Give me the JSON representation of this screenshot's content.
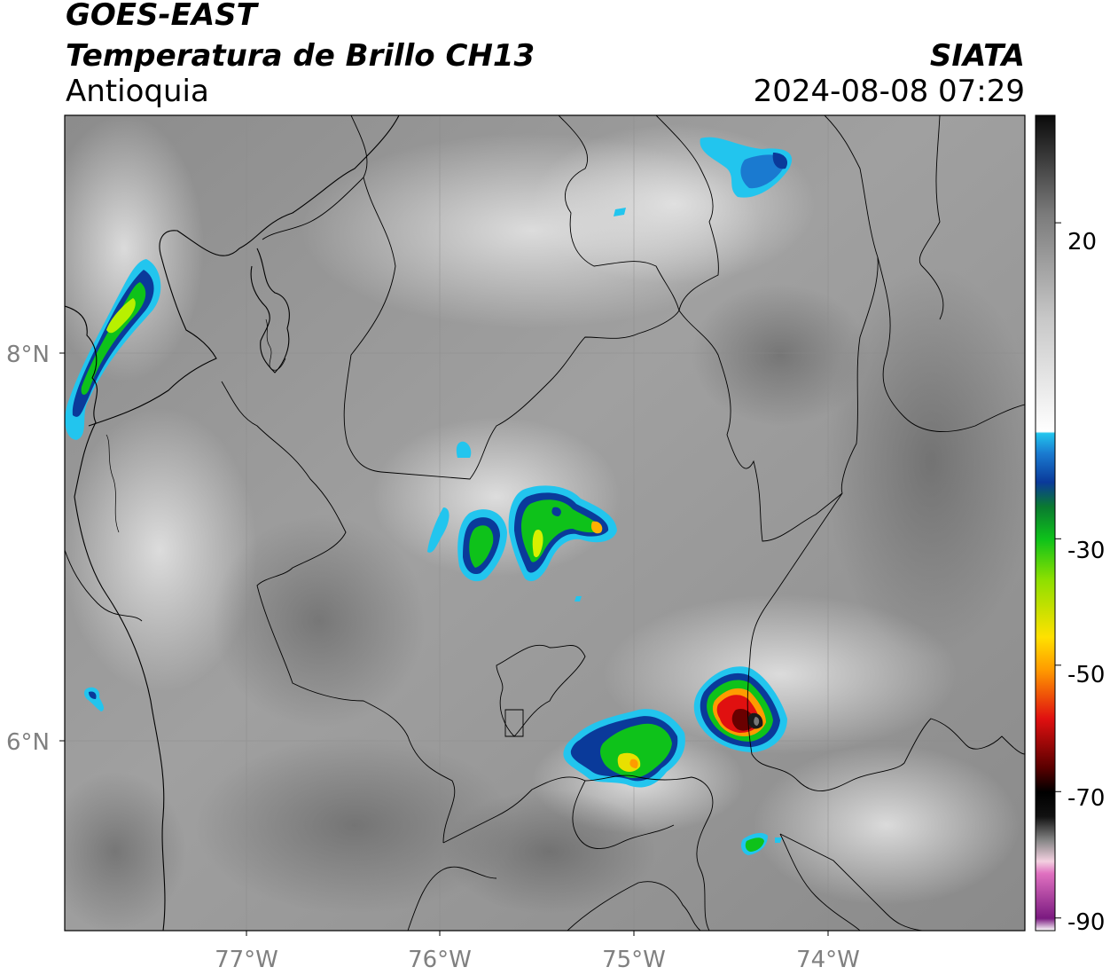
{
  "header": {
    "satellite": "GOES-EAST",
    "product": "Temperatura de Brillo CH13",
    "region": "Antioquia",
    "organization": "SIATA",
    "datetime": "2024-08-08 07:29"
  },
  "axes": {
    "longitude_ticks": [
      "77°W",
      "76°W",
      "75°W",
      "74°W"
    ],
    "latitude_ticks": [
      "8°N",
      "6°N"
    ]
  },
  "colorbar": {
    "tick_labels": [
      "20",
      "-30",
      "-50",
      "-70",
      "-90"
    ],
    "tick_values": [
      20,
      -30,
      -50,
      -70,
      -90
    ],
    "range": [
      -92,
      37
    ],
    "colors": {
      "warm_gray_low": "#2b2b2b",
      "warm_gray_high": "#f2f2f2",
      "cyan": "#22c5ee",
      "blue": "#0a3a9a",
      "green": "#0ec21a",
      "yellow": "#ffe100",
      "orange": "#ff9b00",
      "red": "#e01010",
      "dark_red": "#6a0000",
      "black": "#000000",
      "pink": "#e070c0",
      "purple": "#8a2090"
    }
  },
  "storm_cells": [
    {
      "name": "cell-northwest-coast",
      "min_temp_label": "-45"
    },
    {
      "name": "cell-central",
      "min_temp_label": "-45"
    },
    {
      "name": "cell-south",
      "min_temp_label": "-50"
    },
    {
      "name": "cell-southeast-core",
      "min_temp_label": "-70"
    }
  ]
}
